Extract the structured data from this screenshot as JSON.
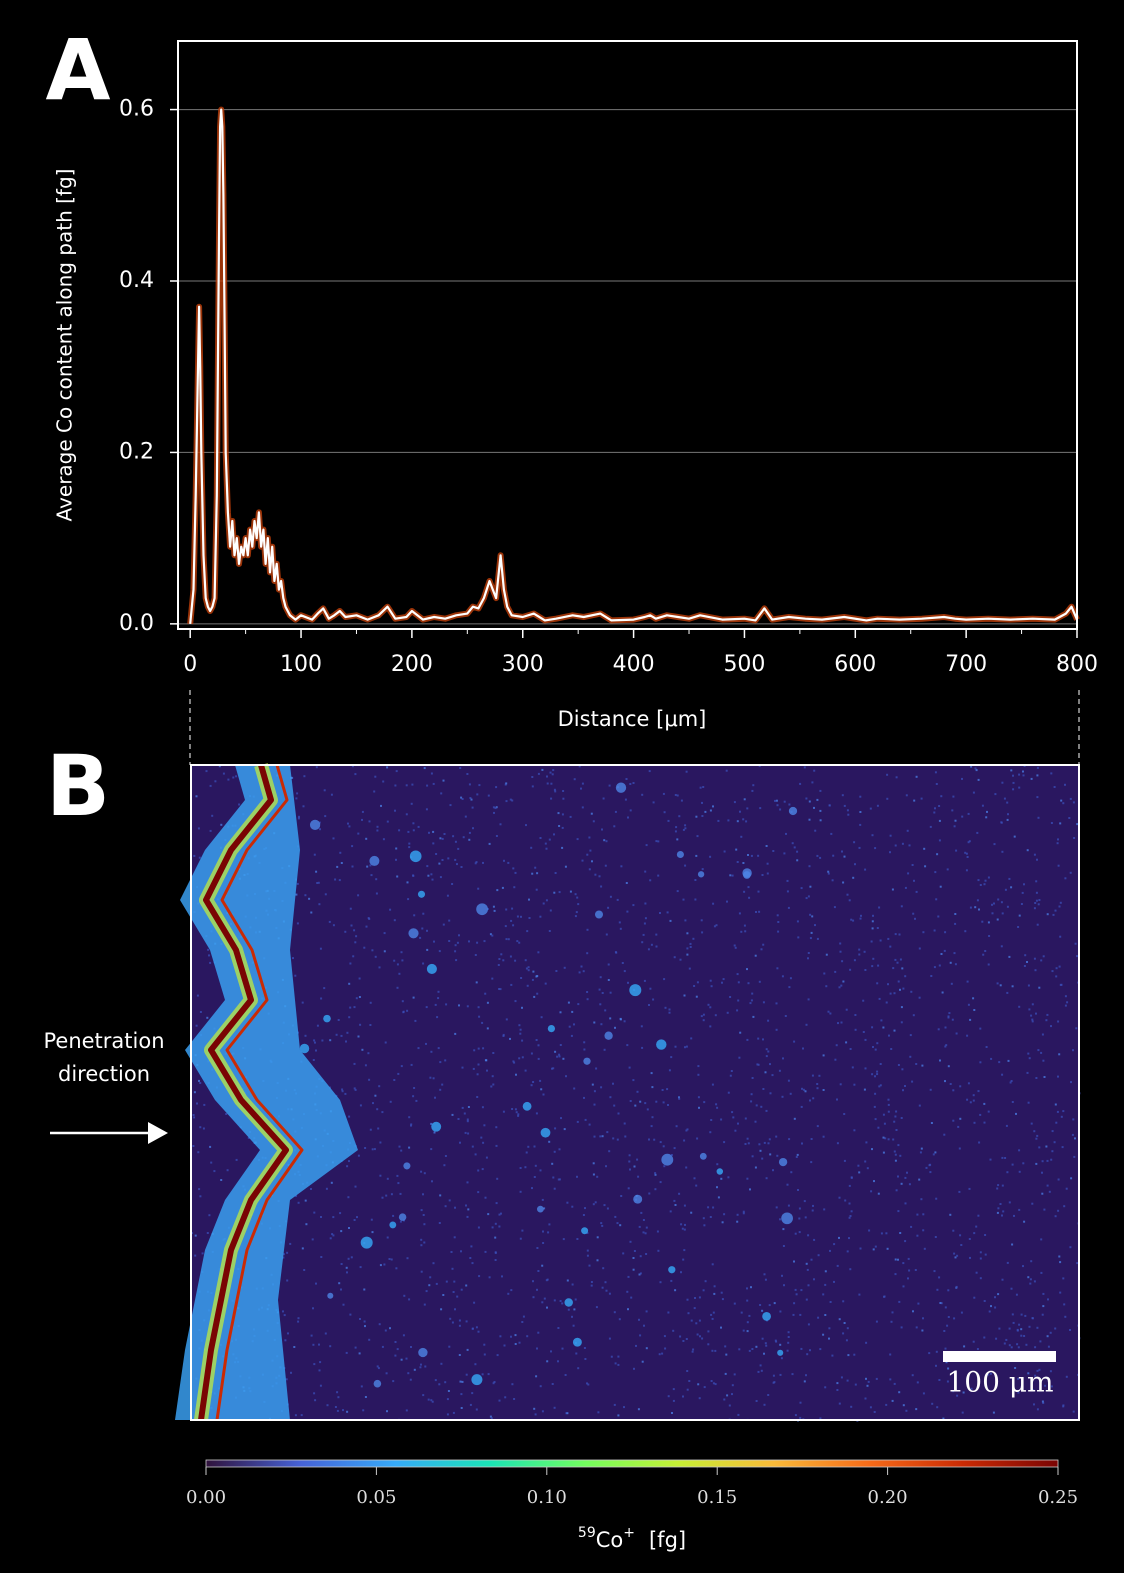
{
  "chart_data": [
    {
      "type": "line",
      "panel_label": "A",
      "xlabel": "Distance [μm]",
      "ylabel": "Average Co content along path [fg]",
      "x": [
        0,
        3,
        5,
        7,
        8,
        9,
        10,
        12,
        14,
        16,
        18,
        20,
        22,
        24,
        26,
        27,
        28,
        29,
        30,
        31,
        32,
        34,
        36,
        38,
        40,
        42,
        44,
        46,
        48,
        50,
        52,
        54,
        56,
        58,
        60,
        62,
        64,
        66,
        68,
        70,
        72,
        74,
        76,
        78,
        80,
        82,
        84,
        86,
        88,
        90,
        95,
        100,
        110,
        115,
        120,
        125,
        130,
        135,
        140,
        150,
        160,
        170,
        178,
        185,
        195,
        200,
        210,
        220,
        230,
        240,
        250,
        255,
        260,
        265,
        270,
        273,
        276,
        280,
        283,
        286,
        290,
        300,
        310,
        320,
        330,
        345,
        355,
        370,
        380,
        400,
        410,
        415,
        420,
        430,
        440,
        450,
        460,
        480,
        500,
        510,
        518,
        525,
        540,
        555,
        570,
        590,
        610,
        620,
        640,
        660,
        680,
        690,
        700,
        720,
        740,
        760,
        780,
        790,
        795,
        800
      ],
      "series": [
        {
          "color": "#ffffff",
          "band_color": "#c0400a",
          "values": [
            0,
            0.04,
            0.15,
            0.3,
            0.37,
            0.3,
            0.2,
            0.08,
            0.03,
            0.02,
            0.015,
            0.02,
            0.03,
            0.15,
            0.45,
            0.58,
            0.6,
            0.58,
            0.5,
            0.35,
            0.2,
            0.13,
            0.09,
            0.12,
            0.08,
            0.1,
            0.07,
            0.09,
            0.08,
            0.1,
            0.08,
            0.11,
            0.09,
            0.12,
            0.1,
            0.13,
            0.09,
            0.11,
            0.07,
            0.1,
            0.06,
            0.09,
            0.05,
            0.07,
            0.04,
            0.05,
            0.03,
            0.02,
            0.015,
            0.01,
            0.005,
            0.01,
            0.005,
            0.012,
            0.018,
            0.006,
            0.01,
            0.015,
            0.008,
            0.01,
            0.005,
            0.01,
            0.02,
            0.006,
            0.008,
            0.015,
            0.005,
            0.008,
            0.006,
            0.01,
            0.012,
            0.02,
            0.018,
            0.03,
            0.05,
            0.04,
            0.03,
            0.08,
            0.04,
            0.02,
            0.01,
            0.008,
            0.012,
            0.004,
            0.006,
            0.01,
            0.008,
            0.012,
            0.004,
            0.005,
            0.008,
            0.01,
            0.006,
            0.01,
            0.008,
            0.006,
            0.01,
            0.005,
            0.006,
            0.004,
            0.018,
            0.005,
            0.008,
            0.006,
            0.005,
            0.008,
            0.004,
            0.006,
            0.005,
            0.006,
            0.008,
            0.006,
            0.005,
            0.006,
            0.005,
            0.006,
            0.005,
            0.012,
            0.02,
            0.005
          ]
        }
      ],
      "xlim": [
        -11,
        800
      ],
      "ylim": [
        -0.006,
        0.68
      ],
      "xticks": [
        0,
        100,
        200,
        300,
        400,
        500,
        600,
        700,
        800
      ],
      "yticks": [
        {
          "value": 0,
          "label": "0.0"
        },
        0.2,
        0.4,
        0.6
      ],
      "grid": true
    },
    {
      "type": "heatmap",
      "panel_label": "B",
      "annotation": [
        "Penetration",
        "direction"
      ],
      "scale_bar": "100 μm",
      "colormap": [
        "#30123b",
        "#4662d7",
        "#36aaf9",
        "#1ae4b6",
        "#72fe5e",
        "#c7ef34",
        "#faba39",
        "#f66b19",
        "#ca2a04",
        "#7a0403"
      ],
      "clim": [
        0,
        0.25
      ],
      "cticks": [
        {
          "value": 0,
          "label": "0.00"
        },
        {
          "value": 0.05,
          "label": "0.05"
        },
        {
          "value": 0.1,
          "label": "0.10"
        },
        {
          "value": 0.15,
          "label": "0.15"
        },
        {
          "value": 0.2,
          "label": "0.20"
        },
        {
          "value": 0.25,
          "label": "0.25"
        }
      ],
      "colorbar_label": {
        "mass": "59",
        "element": "Co",
        "charge": "+",
        "unit": "[fg]"
      }
    }
  ]
}
